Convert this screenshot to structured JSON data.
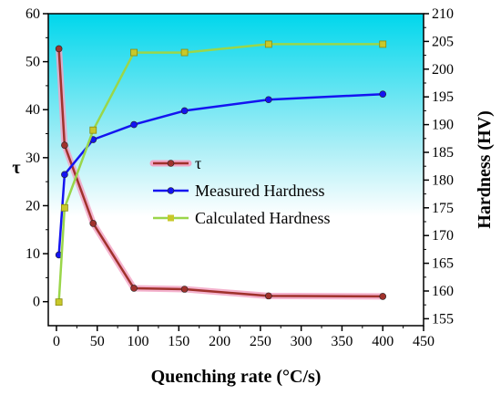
{
  "chart_data": {
    "type": "line",
    "xlabel": "Quenching rate (°C/s)",
    "ylabel_left": "τ",
    "ylabel_right": "Hardness (HV)",
    "xlim": [
      -10,
      450
    ],
    "ylim_left": [
      -5,
      60
    ],
    "ylim_right": [
      153.75,
      210
    ],
    "x_ticks": [
      0,
      50,
      100,
      150,
      200,
      250,
      300,
      350,
      400,
      450
    ],
    "y_left_ticks": [
      0,
      10,
      20,
      30,
      40,
      50,
      60
    ],
    "y_right_ticks": [
      155,
      160,
      165,
      170,
      175,
      180,
      185,
      190,
      195,
      200,
      205,
      210
    ],
    "grid": false,
    "legend_position": "center",
    "background_gradient": [
      "#00d7ec",
      "#ffffff"
    ],
    "series": [
      {
        "name": "τ",
        "axis": "left",
        "color": "#a0322c",
        "halo": "#f2a6c6",
        "marker": "circle",
        "x": [
          3,
          10,
          45,
          95,
          157,
          260,
          400
        ],
        "y": [
          52.7,
          32.6,
          16.3,
          2.8,
          2.6,
          1.2,
          1.1
        ]
      },
      {
        "name": "Measured Hardness",
        "axis": "right",
        "color": "#1414f0",
        "marker": "circle",
        "x": [
          3,
          10,
          45,
          95,
          157,
          260,
          400
        ],
        "y": [
          166.5,
          181.0,
          187.3,
          190.0,
          192.5,
          194.5,
          195.5
        ]
      },
      {
        "name": "Calculated Hardness",
        "axis": "right",
        "color": "#c8c82a",
        "line_color": "#9ad64a",
        "marker": "square",
        "x": [
          3,
          10,
          45,
          95,
          157,
          260,
          400
        ],
        "y": [
          158.0,
          175.0,
          189.0,
          203.0,
          203.0,
          204.5,
          204.5
        ]
      }
    ]
  }
}
